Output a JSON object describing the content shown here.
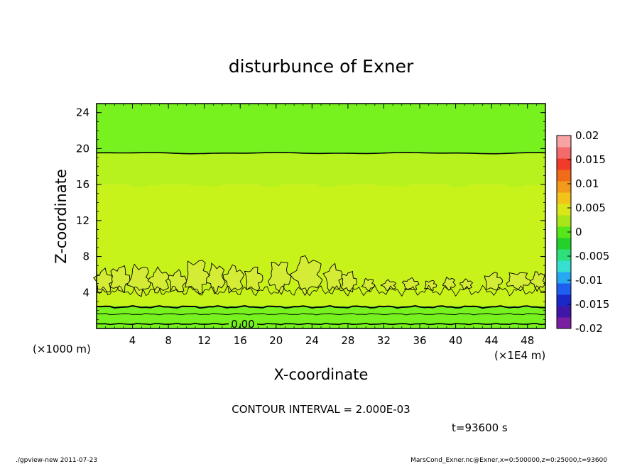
{
  "chart_data": {
    "type": "heatmap",
    "title": "disturbunce of Exner",
    "xlabel": "X-coordinate",
    "ylabel": "Z-coordinate",
    "x_unit": "(×1E4 m)",
    "y_unit": "(×1000 m)",
    "xlim": [
      0,
      50
    ],
    "ylim": [
      0,
      25
    ],
    "x_ticks": [
      "4",
      "8",
      "12",
      "16",
      "20",
      "24",
      "28",
      "32",
      "36",
      "40",
      "44",
      "48"
    ],
    "y_ticks": [
      "4",
      "8",
      "12",
      "16",
      "20",
      "24"
    ],
    "colorbar": {
      "labels": [
        "0.02",
        "0.015",
        "0.01",
        "0.005",
        "0",
        "-0.005",
        "-0.01",
        "-0.015",
        "-0.02"
      ],
      "min": -0.02,
      "max": 0.02,
      "colors": [
        "#7b1fa2",
        "#3f17a8",
        "#1a28c8",
        "#1f5ff0",
        "#27a8f3",
        "#35e0d0",
        "#2ee07a",
        "#23d12a",
        "#57e619",
        "#a8e61a",
        "#d9e61a",
        "#f2c419",
        "#f29a19",
        "#f26b19",
        "#f23a2a",
        "#f26a6a",
        "#f7a3a3"
      ]
    },
    "contour_label": "0.00",
    "z_layers": [
      {
        "z_range": [
          19.5,
          25
        ],
        "value": 0.003
      },
      {
        "z_range": [
          16,
          19.5
        ],
        "value": 0.005
      },
      {
        "z_range": [
          2.5,
          16
        ],
        "value": 0.006
      },
      {
        "z_range": [
          0,
          2.5
        ],
        "value": 0.003
      }
    ]
  },
  "contour_interval_text": "CONTOUR INTERVAL = 2.000E-03",
  "time_text": "t=93600 s",
  "footer_left": "./gpview-new   2011-07-23",
  "footer_right": "MarsCond_Exner.nc@Exner,x=0:500000,z=0:25000,t=93600",
  "colors": {
    "green_top": "#77f21e",
    "yellow_green_mid": "#b7f21e",
    "yellow_green_low": "#c7f21a",
    "cloud_patch": "#d5ec36"
  }
}
